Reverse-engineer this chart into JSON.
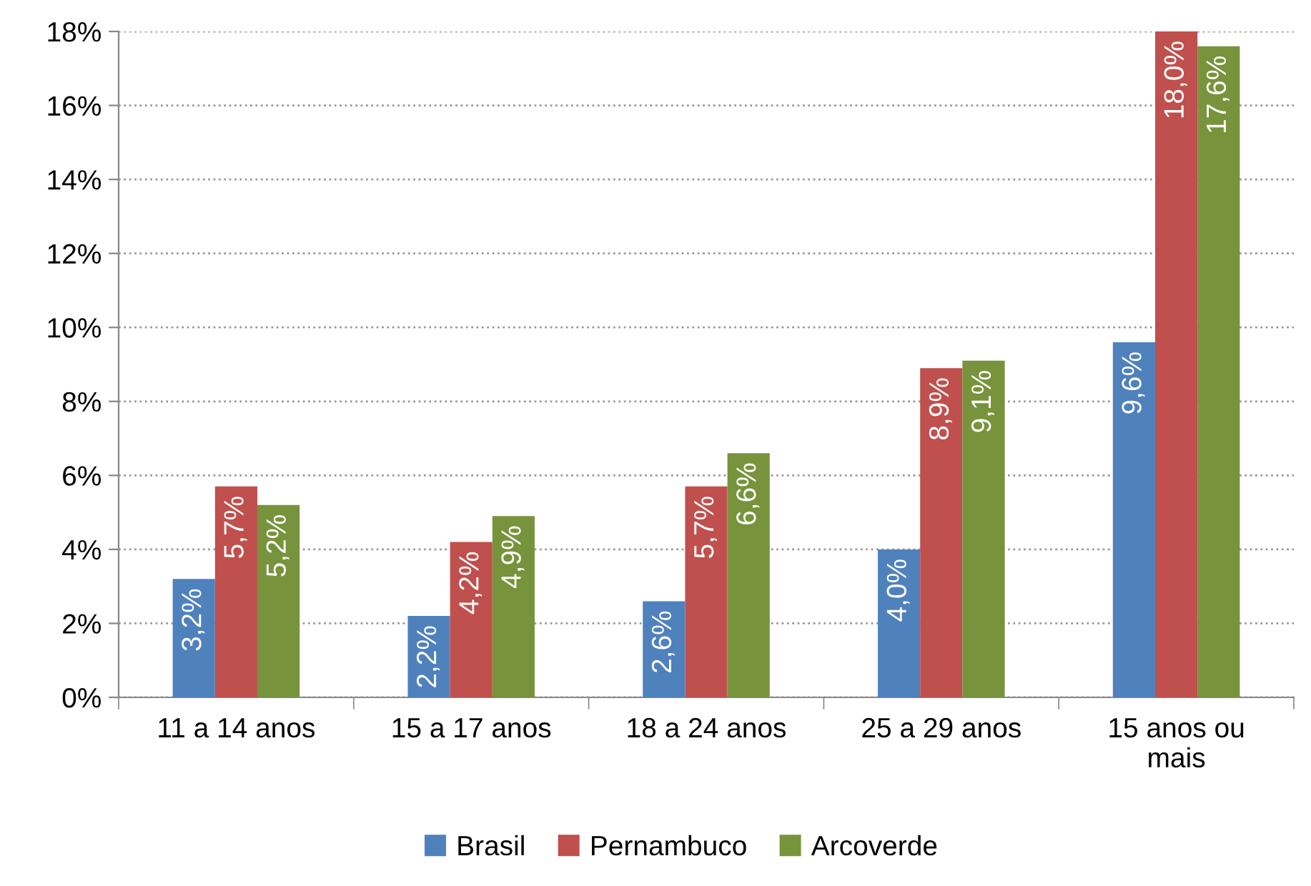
{
  "chart_data": {
    "type": "bar",
    "categories": [
      "11 a 14 anos",
      "15 a 17 anos",
      "18 a 24 anos",
      "25 a 29 anos",
      "15 anos ou\nmais"
    ],
    "series": [
      {
        "name": "Brasil",
        "color": "#4f81bd",
        "values": [
          3.2,
          2.2,
          2.6,
          4.0,
          9.6
        ],
        "value_labels": [
          "3,2%",
          "2,2%",
          "2,6%",
          "4,0%",
          "9,6%"
        ]
      },
      {
        "name": "Pernambuco",
        "color": "#c0504d",
        "values": [
          5.7,
          4.2,
          5.7,
          8.9,
          18.0
        ],
        "value_labels": [
          "5,7%",
          "4,2%",
          "5,7%",
          "8,9%",
          "18,0%"
        ]
      },
      {
        "name": "Arcoverde",
        "color": "#77933c",
        "values": [
          5.2,
          4.9,
          6.6,
          9.1,
          17.6
        ],
        "value_labels": [
          "5,2%",
          "4,9%",
          "6,6%",
          "9,1%",
          "17,6%"
        ]
      }
    ],
    "ylim": [
      0,
      18
    ],
    "yticks": [
      {
        "value": 0,
        "label": "0%"
      },
      {
        "value": 2,
        "label": "2%"
      },
      {
        "value": 4,
        "label": "4%"
      },
      {
        "value": 6,
        "label": "6%"
      },
      {
        "value": 8,
        "label": "8%"
      },
      {
        "value": 10,
        "label": "10%"
      },
      {
        "value": 12,
        "label": "12%"
      },
      {
        "value": 14,
        "label": "14%"
      },
      {
        "value": 16,
        "label": "16%"
      },
      {
        "value": 18,
        "label": "18%"
      }
    ],
    "grid": "y",
    "legend": "bottom"
  }
}
